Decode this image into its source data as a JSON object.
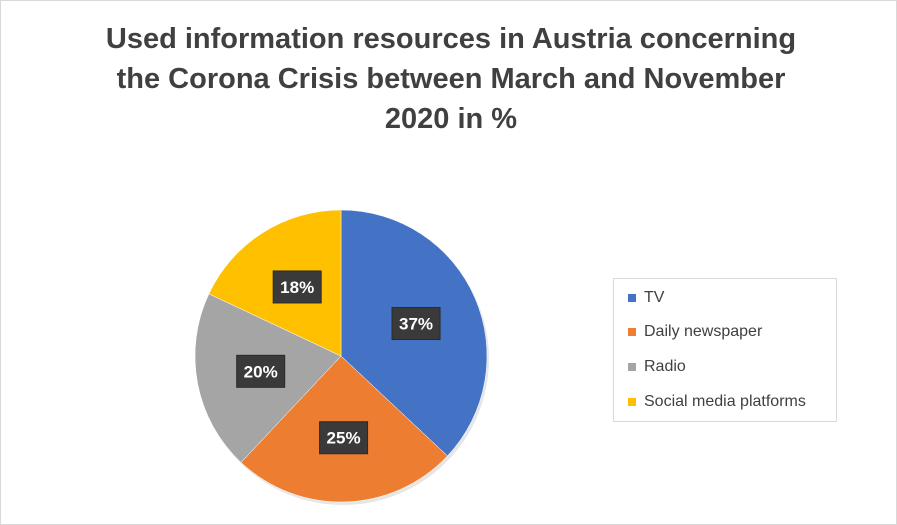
{
  "chart_data": {
    "type": "pie",
    "title_lines": [
      "Used information resources in Austria concerning",
      "the Corona Crisis between March and November",
      "2020 in %"
    ],
    "slices": [
      {
        "name": "TV",
        "value": 37,
        "label": "37%",
        "color": "#4472C4"
      },
      {
        "name": "Daily newspaper",
        "value": 25,
        "label": "25%",
        "color": "#ED7D31"
      },
      {
        "name": "Radio",
        "value": 20,
        "label": "20%",
        "color": "#A5A5A5"
      },
      {
        "name": "Social media platforms",
        "value": 18,
        "label": "18%",
        "color": "#FFC000"
      }
    ],
    "legend_position": "right"
  }
}
